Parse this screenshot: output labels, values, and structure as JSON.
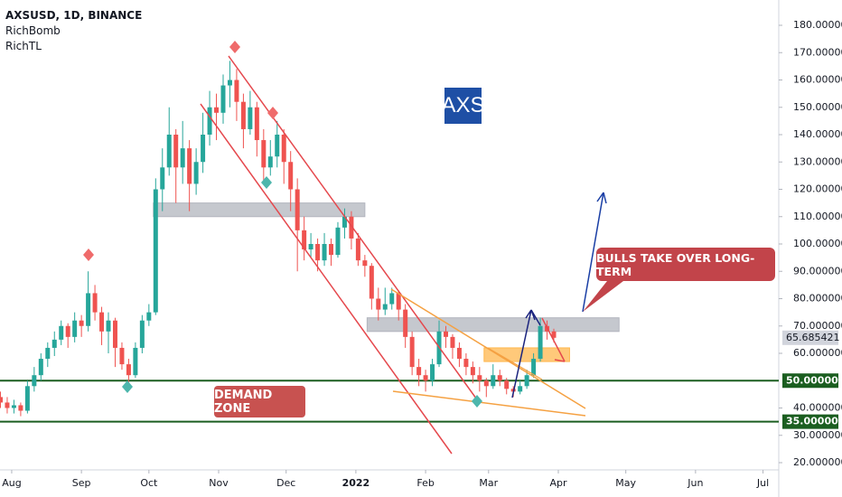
{
  "chart_data": {
    "type": "candlestick",
    "title": "AXSUSD, 1D, BINANCE",
    "indicators": [
      "RichBomb",
      "RichTL"
    ],
    "badge": "AXS",
    "demand_label": "DEMAND ZONE",
    "callout": "BULLS TAKE OVER LONG-TERM",
    "up_color": "#26a69a",
    "down_color": "#ef5350",
    "xlim": [
      -5.2,
      341
    ],
    "ylim": [
      20,
      180
    ],
    "yticks": [
      {
        "value": 20,
        "label": "20.000000"
      },
      {
        "value": 30,
        "label": "30.000000"
      },
      {
        "value": 40,
        "label": "40.000000"
      },
      {
        "value": 60,
        "label": "60.000000"
      },
      {
        "value": 70,
        "label": "70.000000"
      },
      {
        "value": 80,
        "label": "80.000000"
      },
      {
        "value": 90,
        "label": "90.000000"
      },
      {
        "value": 100,
        "label": "100.000000"
      },
      {
        "value": 110,
        "label": "110.000000"
      },
      {
        "value": 120,
        "label": "120.000000"
      },
      {
        "value": 130,
        "label": "130.000000"
      },
      {
        "value": 140,
        "label": "140.000000"
      },
      {
        "value": 150,
        "label": "150.000000"
      },
      {
        "value": 160,
        "label": "160.000000"
      },
      {
        "value": 170,
        "label": "170.000000"
      },
      {
        "value": 180,
        "label": "180.000000"
      }
    ],
    "xticks": [
      {
        "value": 0,
        "label": "Aug"
      },
      {
        "value": 31,
        "label": "Sep"
      },
      {
        "value": 61,
        "label": "Oct"
      },
      {
        "value": 92,
        "label": "Nov"
      },
      {
        "value": 122,
        "label": "Dec"
      },
      {
        "value": 153,
        "label": "2022"
      },
      {
        "value": 184,
        "label": "Feb"
      },
      {
        "value": 212,
        "label": "Mar"
      },
      {
        "value": 243,
        "label": "Apr"
      },
      {
        "value": 273,
        "label": "May"
      },
      {
        "value": 304,
        "label": "Jun"
      },
      {
        "value": 334,
        "label": "Jul"
      }
    ],
    "levels": [
      {
        "value": 50,
        "label": "50.000000"
      },
      {
        "value": 35,
        "label": "35.000000"
      }
    ],
    "level_color": "#1b5e20",
    "zones": [
      {
        "x": [
          63,
          157
        ],
        "ylim": [
          110,
          115
        ],
        "color": "#b2b5be"
      },
      {
        "x": [
          158,
          270
        ],
        "ylim": [
          68,
          73
        ],
        "color": "#b2b5be"
      },
      {
        "x": [
          210,
          248
        ],
        "ylim": [
          57,
          62
        ],
        "color": "#ffb74d"
      }
    ],
    "candles": [
      [
        -5,
        44,
        46,
        40,
        42
      ],
      [
        -2,
        42,
        44,
        38,
        40
      ],
      [
        1,
        40,
        43,
        38,
        41
      ],
      [
        4,
        41,
        42,
        37,
        39
      ],
      [
        7,
        39,
        50,
        38,
        48
      ],
      [
        10,
        48,
        55,
        46,
        52
      ],
      [
        13,
        52,
        60,
        50,
        58
      ],
      [
        16,
        58,
        64,
        55,
        62
      ],
      [
        19,
        62,
        68,
        59,
        65
      ],
      [
        22,
        65,
        72,
        63,
        70
      ],
      [
        25,
        70,
        71,
        62,
        66
      ],
      [
        28,
        66,
        75,
        64,
        72
      ],
      [
        31,
        72,
        74,
        66,
        70
      ],
      [
        34,
        70,
        90,
        68,
        82
      ],
      [
        37,
        82,
        85,
        72,
        75
      ],
      [
        40,
        75,
        77,
        63,
        68
      ],
      [
        43,
        68,
        75,
        60,
        72
      ],
      [
        46,
        72,
        73,
        55,
        62
      ],
      [
        49,
        62,
        64,
        54,
        56
      ],
      [
        52,
        56,
        58,
        49,
        52
      ],
      [
        55,
        52,
        64,
        51,
        62
      ],
      [
        58,
        62,
        74,
        60,
        72
      ],
      [
        61,
        72,
        78,
        70,
        75
      ],
      [
        64,
        75,
        124,
        74,
        120
      ],
      [
        67,
        120,
        135,
        112,
        128
      ],
      [
        70,
        128,
        150,
        125,
        140
      ],
      [
        73,
        140,
        142,
        115,
        128
      ],
      [
        76,
        128,
        145,
        122,
        135
      ],
      [
        79,
        135,
        138,
        112,
        122
      ],
      [
        82,
        122,
        135,
        118,
        130
      ],
      [
        85,
        130,
        148,
        126,
        140
      ],
      [
        88,
        140,
        156,
        136,
        150
      ],
      [
        91,
        150,
        155,
        138,
        148
      ],
      [
        94,
        148,
        162,
        144,
        158
      ],
      [
        97,
        158,
        167,
        150,
        160
      ],
      [
        100,
        160,
        164,
        145,
        152
      ],
      [
        103,
        152,
        155,
        135,
        142
      ],
      [
        106,
        142,
        156,
        140,
        150
      ],
      [
        109,
        150,
        152,
        132,
        138
      ],
      [
        112,
        138,
        142,
        122,
        128
      ],
      [
        115,
        128,
        138,
        125,
        132
      ],
      [
        118,
        132,
        145,
        128,
        140
      ],
      [
        121,
        140,
        142,
        122,
        130
      ],
      [
        124,
        130,
        134,
        112,
        120
      ],
      [
        127,
        120,
        124,
        90,
        105
      ],
      [
        130,
        105,
        110,
        94,
        98
      ],
      [
        133,
        98,
        104,
        95,
        100
      ],
      [
        136,
        100,
        102,
        90,
        94
      ],
      [
        139,
        94,
        104,
        92,
        100
      ],
      [
        142,
        100,
        102,
        92,
        96
      ],
      [
        145,
        96,
        108,
        95,
        106
      ],
      [
        148,
        106,
        113,
        102,
        110
      ],
      [
        151,
        110,
        112,
        98,
        102
      ],
      [
        154,
        102,
        104,
        92,
        94
      ],
      [
        157,
        94,
        96,
        88,
        92
      ],
      [
        160,
        92,
        93,
        76,
        80
      ],
      [
        163,
        80,
        84,
        72,
        76
      ],
      [
        166,
        76,
        84,
        74,
        78
      ],
      [
        169,
        78,
        84,
        76,
        82
      ],
      [
        172,
        82,
        83,
        72,
        76
      ],
      [
        175,
        76,
        78,
        62,
        66
      ],
      [
        178,
        66,
        68,
        52,
        55
      ],
      [
        181,
        55,
        58,
        48,
        52
      ],
      [
        184,
        52,
        54,
        46,
        50
      ],
      [
        187,
        50,
        58,
        48,
        56
      ],
      [
        190,
        56,
        72,
        55,
        68
      ],
      [
        193,
        68,
        70,
        62,
        66
      ],
      [
        196,
        66,
        67,
        58,
        62
      ],
      [
        199,
        62,
        64,
        55,
        58
      ],
      [
        202,
        58,
        60,
        52,
        55
      ],
      [
        205,
        55,
        57,
        49,
        52
      ],
      [
        208,
        52,
        55,
        46,
        50
      ],
      [
        211,
        50,
        51,
        44,
        48
      ],
      [
        214,
        48,
        56,
        47,
        52
      ],
      [
        217,
        52,
        54,
        48,
        50
      ],
      [
        220,
        50,
        51,
        45,
        47
      ],
      [
        223,
        47,
        48,
        44,
        46
      ],
      [
        226,
        46,
        50,
        45,
        48
      ],
      [
        229,
        48,
        54,
        47,
        52
      ],
      [
        232,
        52,
        60,
        51,
        58
      ],
      [
        235,
        58,
        73,
        57,
        70
      ],
      [
        238,
        70,
        72,
        65,
        68
      ],
      [
        241,
        68,
        69,
        64,
        65.685421
      ]
    ]
  }
}
